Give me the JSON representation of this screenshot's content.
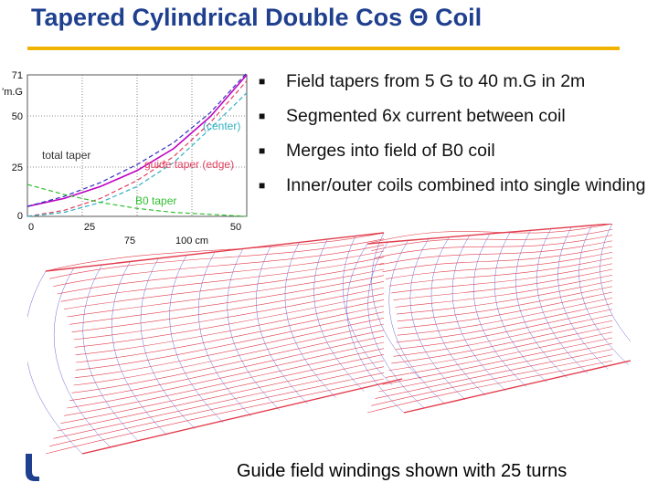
{
  "title": "Tapered Cylindrical Double Cos Θ Coil",
  "bullets": [
    "Field tapers from 5 G to 40 m.G in 2m",
    "Segmented 6x current between coil",
    "Merges into field of B0 coil",
    "Inner/outer coils combined into single winding"
  ],
  "caption": "Guide field windings shown with 25 turns",
  "chart_data": {
    "type": "line",
    "ylabel": "'m.G",
    "y_ticks": [
      "71",
      "50",
      "25",
      "0"
    ],
    "x_ticks_upper": [
      "0",
      "25",
      "50"
    ],
    "x_ticks_lower": [
      "75",
      "100 cm"
    ],
    "annotations": [
      "(center)",
      "total taper",
      "guide taper (edge)",
      "B0 taper"
    ],
    "xlim": [
      0,
      120
    ],
    "ylim": [
      0,
      71
    ],
    "series": [
      {
        "name": "total taper",
        "color": "#c000c0",
        "x": [
          0,
          20,
          40,
          60,
          80,
          100,
          120
        ],
        "y": [
          5,
          9,
          15,
          23,
          34,
          50,
          71
        ]
      },
      {
        "name": "total taper (dashed)",
        "color": "#3030c0",
        "x": [
          0,
          20,
          40,
          60,
          80,
          100,
          120
        ],
        "y": [
          5,
          10,
          17,
          26,
          37,
          52,
          72
        ]
      },
      {
        "name": "guide taper (edge)",
        "color": "#e04060",
        "x": [
          0,
          20,
          40,
          60,
          80,
          100,
          120
        ],
        "y": [
          0,
          3,
          9,
          18,
          30,
          47,
          68
        ]
      },
      {
        "name": "guide taper (center)",
        "color": "#30b0c0",
        "x": [
          0,
          20,
          40,
          60,
          80,
          100,
          120
        ],
        "y": [
          0,
          2,
          7,
          15,
          27,
          44,
          62
        ]
      },
      {
        "name": "B0 taper",
        "color": "#30c030",
        "x": [
          0,
          20,
          40,
          60,
          80,
          100,
          120
        ],
        "y": [
          16,
          11,
          7,
          4,
          2,
          1,
          0
        ]
      }
    ]
  },
  "colors": {
    "title": "#1f3f8f",
    "rule": "#f0b400",
    "coil_red": "#e23a4a",
    "coil_blue": "#6a6ad8",
    "logo": "#1f3f8f"
  },
  "logo_icon": "u-logo-icon"
}
